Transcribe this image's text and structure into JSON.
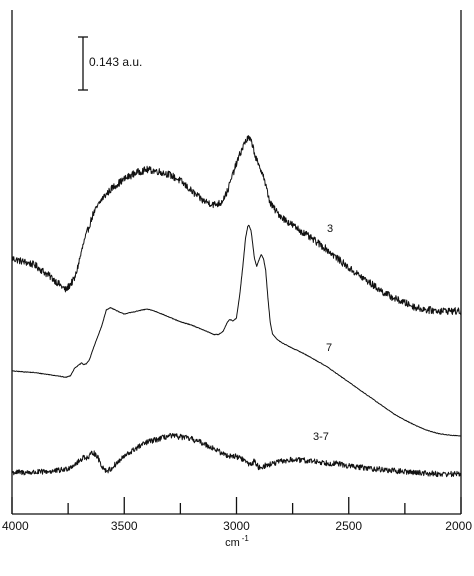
{
  "chart_data": {
    "type": "line",
    "title": "",
    "caption": "",
    "xlabel": "cm-1",
    "xlabel_main": "cm",
    "xlabel_sup": "-1",
    "ylabel": "",
    "xlim": [
      4000,
      2000
    ],
    "x_reversed": true,
    "x_ticks": [
      4000,
      3500,
      3000,
      2500,
      2000
    ],
    "x_minor_ticks": [
      3750,
      3250,
      2750,
      2250
    ],
    "scale_bar_label": "0.143 a.u.",
    "grid": false,
    "series": [
      {
        "name": "3",
        "noise": 0.045,
        "points": [
          [
            4000,
            -0.3
          ],
          [
            3900,
            -0.38
          ],
          [
            3820,
            -0.55
          ],
          [
            3760,
            -0.7
          ],
          [
            3720,
            -0.55
          ],
          [
            3680,
            -0.1
          ],
          [
            3640,
            0.25
          ],
          [
            3600,
            0.45
          ],
          [
            3550,
            0.6
          ],
          [
            3500,
            0.7
          ],
          [
            3450,
            0.78
          ],
          [
            3400,
            0.82
          ],
          [
            3350,
            0.8
          ],
          [
            3300,
            0.76
          ],
          [
            3250,
            0.68
          ],
          [
            3200,
            0.55
          ],
          [
            3150,
            0.43
          ],
          [
            3100,
            0.38
          ],
          [
            3070,
            0.4
          ],
          [
            3040,
            0.55
          ],
          [
            3010,
            0.82
          ],
          [
            2980,
            1.05
          ],
          [
            2960,
            1.18
          ],
          [
            2945,
            1.22
          ],
          [
            2930,
            1.15
          ],
          [
            2915,
            0.98
          ],
          [
            2900,
            0.85
          ],
          [
            2885,
            0.8
          ],
          [
            2870,
            0.62
          ],
          [
            2850,
            0.4
          ],
          [
            2820,
            0.28
          ],
          [
            2780,
            0.18
          ],
          [
            2740,
            0.1
          ],
          [
            2700,
            0.02
          ],
          [
            2650,
            -0.08
          ],
          [
            2600,
            -0.18
          ],
          [
            2550,
            -0.3
          ],
          [
            2500,
            -0.42
          ],
          [
            2450,
            -0.52
          ],
          [
            2400,
            -0.62
          ],
          [
            2350,
            -0.72
          ],
          [
            2300,
            -0.8
          ],
          [
            2250,
            -0.86
          ],
          [
            2200,
            -0.92
          ],
          [
            2150,
            -0.95
          ],
          [
            2100,
            -0.96
          ],
          [
            2050,
            -0.96
          ],
          [
            2000,
            -0.97
          ]
        ]
      },
      {
        "name": "7",
        "noise": 0.004,
        "points": [
          [
            4000,
            -1.72
          ],
          [
            3950,
            -1.73
          ],
          [
            3900,
            -1.74
          ],
          [
            3850,
            -1.76
          ],
          [
            3800,
            -1.78
          ],
          [
            3760,
            -1.8
          ],
          [
            3740,
            -1.78
          ],
          [
            3720,
            -1.68
          ],
          [
            3710,
            -1.66
          ],
          [
            3700,
            -1.64
          ],
          [
            3690,
            -1.62
          ],
          [
            3680,
            -1.64
          ],
          [
            3670,
            -1.63
          ],
          [
            3655,
            -1.58
          ],
          [
            3640,
            -1.45
          ],
          [
            3620,
            -1.3
          ],
          [
            3600,
            -1.15
          ],
          [
            3580,
            -0.95
          ],
          [
            3560,
            -0.92
          ],
          [
            3540,
            -0.95
          ],
          [
            3520,
            -0.98
          ],
          [
            3500,
            -1.0
          ],
          [
            3450,
            -0.97
          ],
          [
            3420,
            -0.95
          ],
          [
            3400,
            -0.94
          ],
          [
            3380,
            -0.95
          ],
          [
            3350,
            -0.98
          ],
          [
            3300,
            -1.04
          ],
          [
            3250,
            -1.1
          ],
          [
            3200,
            -1.14
          ],
          [
            3150,
            -1.2
          ],
          [
            3100,
            -1.26
          ],
          [
            3080,
            -1.26
          ],
          [
            3060,
            -1.22
          ],
          [
            3040,
            -1.1
          ],
          [
            3030,
            -1.07
          ],
          [
            3015,
            -1.09
          ],
          [
            3000,
            -1.05
          ],
          [
            2985,
            -0.75
          ],
          [
            2970,
            -0.35
          ],
          [
            2960,
            -0.05
          ],
          [
            2950,
            0.1
          ],
          [
            2945,
            0.12
          ],
          [
            2935,
            0.05
          ],
          [
            2920,
            -0.3
          ],
          [
            2910,
            -0.4
          ],
          [
            2900,
            -0.32
          ],
          [
            2890,
            -0.25
          ],
          [
            2880,
            -0.3
          ],
          [
            2870,
            -0.45
          ],
          [
            2860,
            -0.8
          ],
          [
            2850,
            -1.1
          ],
          [
            2840,
            -1.25
          ],
          [
            2820,
            -1.32
          ],
          [
            2800,
            -1.36
          ],
          [
            2760,
            -1.42
          ],
          [
            2700,
            -1.5
          ],
          [
            2650,
            -1.58
          ],
          [
            2600,
            -1.66
          ],
          [
            2550,
            -1.76
          ],
          [
            2500,
            -1.86
          ],
          [
            2450,
            -1.96
          ],
          [
            2400,
            -2.06
          ],
          [
            2350,
            -2.16
          ],
          [
            2300,
            -2.26
          ],
          [
            2250,
            -2.34
          ],
          [
            2200,
            -2.41
          ],
          [
            2150,
            -2.47
          ],
          [
            2100,
            -2.51
          ],
          [
            2050,
            -2.53
          ],
          [
            2000,
            -2.54
          ]
        ]
      },
      {
        "name": "3-7",
        "noise": 0.035,
        "points": [
          [
            4000,
            -3.0
          ],
          [
            3900,
            -3.0
          ],
          [
            3800,
            -2.98
          ],
          [
            3760,
            -2.96
          ],
          [
            3740,
            -2.93
          ],
          [
            3700,
            -2.86
          ],
          [
            3680,
            -2.8
          ],
          [
            3660,
            -2.82
          ],
          [
            3640,
            -2.74
          ],
          [
            3620,
            -2.8
          ],
          [
            3600,
            -2.92
          ],
          [
            3580,
            -2.98
          ],
          [
            3560,
            -2.96
          ],
          [
            3540,
            -2.9
          ],
          [
            3500,
            -2.8
          ],
          [
            3450,
            -2.7
          ],
          [
            3400,
            -2.62
          ],
          [
            3350,
            -2.58
          ],
          [
            3300,
            -2.54
          ],
          [
            3250,
            -2.55
          ],
          [
            3200,
            -2.58
          ],
          [
            3150,
            -2.63
          ],
          [
            3100,
            -2.7
          ],
          [
            3050,
            -2.78
          ],
          [
            3000,
            -2.8
          ],
          [
            2980,
            -2.82
          ],
          [
            2960,
            -2.86
          ],
          [
            2940,
            -2.9
          ],
          [
            2920,
            -2.86
          ],
          [
            2900,
            -2.94
          ],
          [
            2880,
            -2.92
          ],
          [
            2850,
            -2.9
          ],
          [
            2800,
            -2.86
          ],
          [
            2750,
            -2.84
          ],
          [
            2700,
            -2.85
          ],
          [
            2650,
            -2.86
          ],
          [
            2600,
            -2.88
          ],
          [
            2550,
            -2.89
          ],
          [
            2500,
            -2.92
          ],
          [
            2400,
            -2.95
          ],
          [
            2300,
            -2.98
          ],
          [
            2200,
            -3.0
          ],
          [
            2100,
            -3.02
          ],
          [
            2000,
            -3.02
          ]
        ]
      }
    ]
  }
}
